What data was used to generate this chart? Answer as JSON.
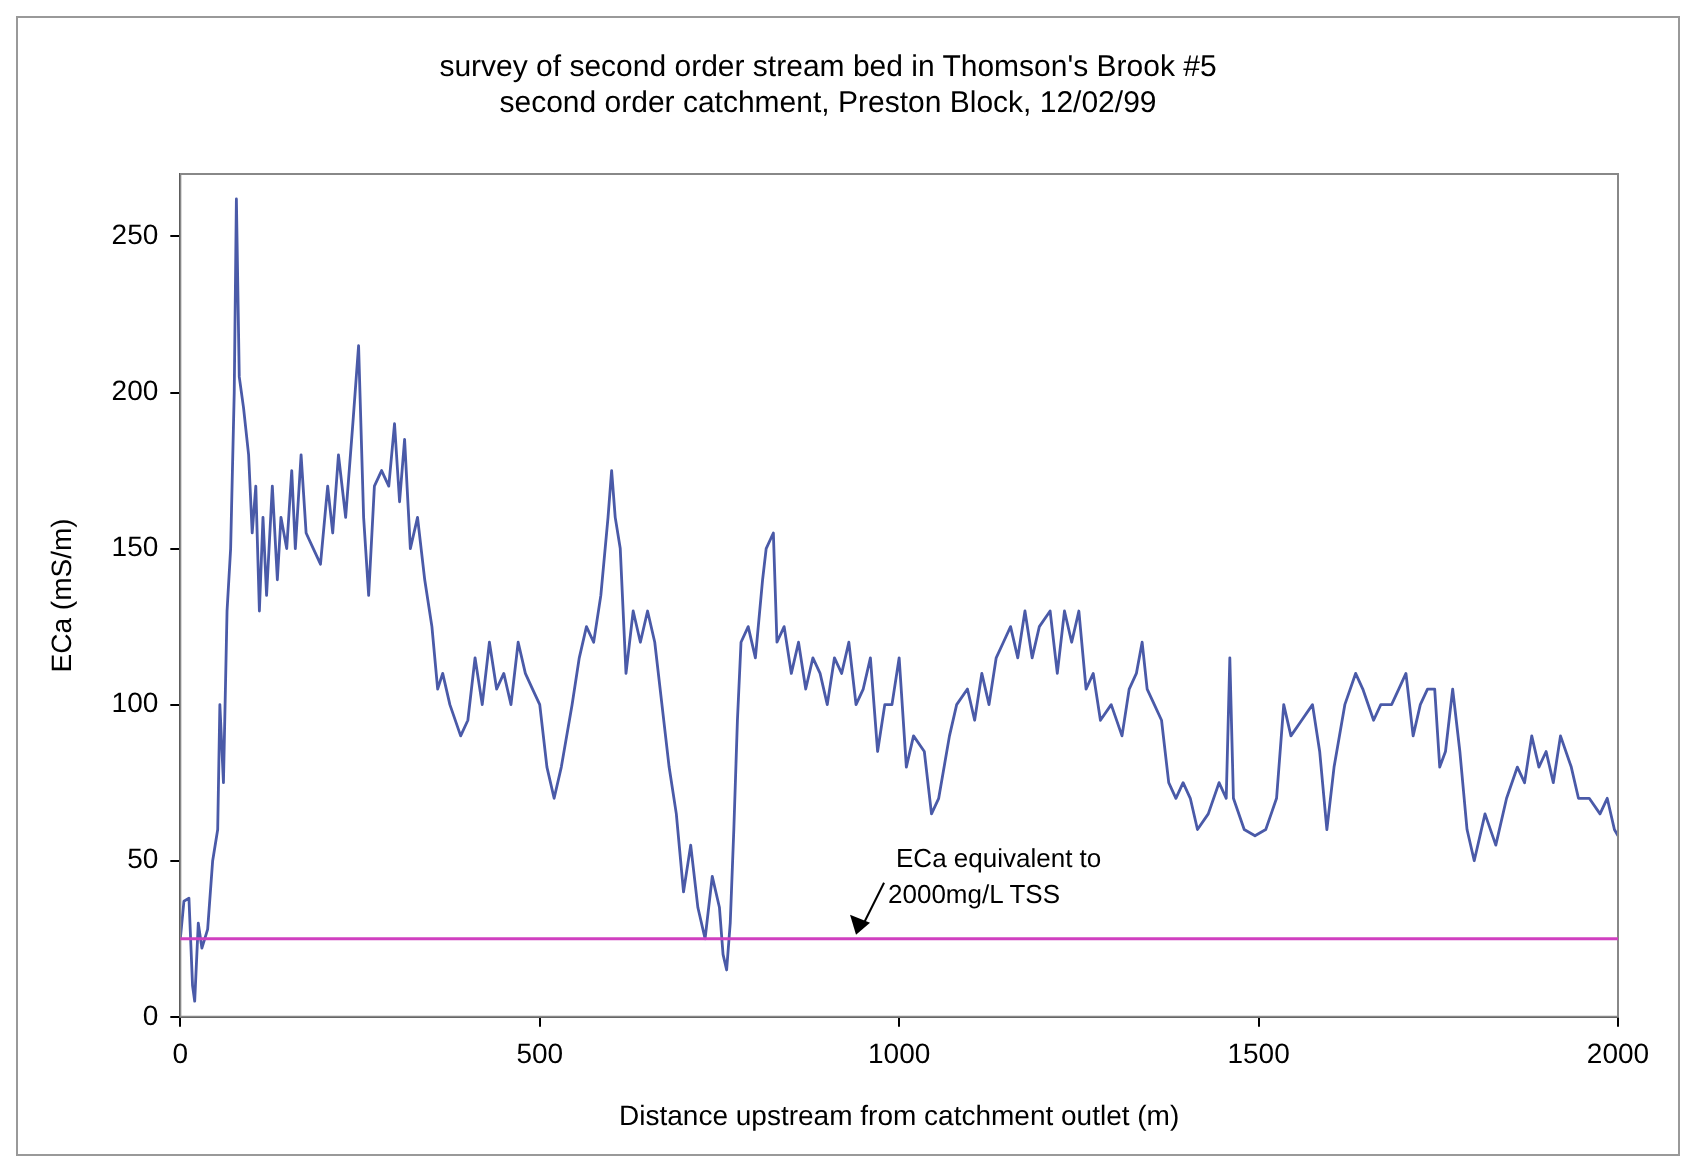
{
  "chart_data": {
    "type": "line",
    "title": "survey of second order stream bed in Thomson's Brook #5\nsecond order catchment, Preston Block, 12/02/99",
    "xlabel": "Distance upstream from catchment outlet (m)",
    "ylabel": "ECa (mS/m)",
    "x": [
      0,
      5,
      12,
      17,
      20,
      25,
      30,
      38,
      45,
      52,
      55,
      60,
      65,
      70,
      75,
      78,
      82,
      88,
      95,
      100,
      105,
      110,
      115,
      120,
      128,
      135,
      140,
      148,
      155,
      160,
      168,
      175,
      185,
      195,
      205,
      212,
      220,
      230,
      240,
      248,
      255,
      262,
      270,
      280,
      290,
      298,
      305,
      312,
      320,
      330,
      340,
      350,
      358,
      365,
      375,
      390,
      400,
      410,
      420,
      430,
      440,
      450,
      460,
      470,
      480,
      490,
      500,
      510,
      520,
      530,
      545,
      555,
      565,
      575,
      585,
      595,
      600,
      605,
      612,
      620,
      630,
      640,
      650,
      660,
      670,
      680,
      690,
      700,
      710,
      720,
      730,
      740,
      750,
      755,
      760,
      765,
      770,
      775,
      780,
      790,
      800,
      810,
      815,
      825,
      830,
      840,
      850,
      860,
      870,
      880,
      890,
      900,
      910,
      920,
      930,
      940,
      950,
      960,
      970,
      980,
      990,
      1000,
      1010,
      1020,
      1035,
      1045,
      1055,
      1070,
      1080,
      1095,
      1105,
      1115,
      1125,
      1135,
      1145,
      1155,
      1165,
      1175,
      1185,
      1195,
      1210,
      1220,
      1230,
      1240,
      1250,
      1260,
      1270,
      1280,
      1295,
      1310,
      1320,
      1330,
      1338,
      1345,
      1355,
      1365,
      1375,
      1385,
      1395,
      1405,
      1415,
      1430,
      1445,
      1455,
      1460,
      1465,
      1480,
      1495,
      1510,
      1525,
      1535,
      1545,
      1560,
      1575,
      1585,
      1595,
      1605,
      1620,
      1635,
      1645,
      1660,
      1670,
      1685,
      1695,
      1705,
      1715,
      1725,
      1735,
      1745,
      1752,
      1760,
      1770,
      1780,
      1790,
      1800,
      1815,
      1830,
      1845,
      1860,
      1870,
      1880,
      1890,
      1900,
      1910,
      1920,
      1935,
      1945,
      1960,
      1975,
      1985,
      1995,
      2000
    ],
    "series": [
      {
        "color": "#4a5aa8",
        "values": [
          25,
          37,
          38,
          10,
          5,
          30,
          22,
          28,
          50,
          60,
          100,
          75,
          130,
          150,
          200,
          262,
          205,
          195,
          180,
          155,
          170,
          130,
          160,
          135,
          170,
          140,
          160,
          150,
          175,
          150,
          180,
          155,
          150,
          145,
          170,
          155,
          180,
          160,
          190,
          215,
          160,
          135,
          170,
          175,
          170,
          190,
          165,
          185,
          150,
          160,
          140,
          125,
          105,
          110,
          100,
          90,
          95,
          115,
          100,
          120,
          105,
          110,
          100,
          120,
          110,
          105,
          100,
          80,
          70,
          80,
          100,
          115,
          125,
          120,
          135,
          160,
          175,
          160,
          150,
          110,
          130,
          120,
          130,
          120,
          100,
          80,
          65,
          40,
          55,
          35,
          25,
          45,
          35,
          20,
          15,
          30,
          60,
          95,
          120,
          125,
          115,
          140,
          150,
          155,
          120,
          125,
          110,
          120,
          105,
          115,
          110,
          100,
          115,
          110,
          120,
          100,
          105,
          115,
          85,
          100,
          100,
          115,
          80,
          90,
          85,
          65,
          70,
          90,
          100,
          105,
          95,
          110,
          100,
          115,
          120,
          125,
          115,
          130,
          115,
          125,
          130,
          110,
          130,
          120,
          130,
          105,
          110,
          95,
          100,
          90,
          105,
          110,
          120,
          105,
          100,
          95,
          75,
          70,
          75,
          70,
          60,
          65,
          75,
          70,
          115,
          70,
          60,
          58,
          60,
          70,
          100,
          90,
          95,
          100,
          85,
          60,
          80,
          100,
          110,
          105,
          95,
          100,
          100,
          105,
          110,
          90,
          100,
          105,
          105,
          80,
          85,
          105,
          85,
          60,
          50,
          65,
          55,
          70,
          80,
          75,
          90,
          80,
          85,
          75,
          90,
          80,
          70,
          70,
          65,
          70,
          60,
          58
        ]
      }
    ],
    "xlim": [
      0,
      2000
    ],
    "xticks": [
      0,
      500,
      1000,
      1500,
      2000
    ],
    "ylim": [
      0,
      270
    ],
    "yticks": [
      0,
      50,
      100,
      150,
      200,
      250
    ],
    "ref_lines": [
      {
        "axis": "y",
        "value": 25,
        "color": "#d040c0"
      }
    ],
    "annotations": [
      {
        "text": "ECa equivalent to 2000mg/L TSS",
        "x": 940,
        "y": 25
      }
    ],
    "marker": "none",
    "line_style": "solid",
    "legend": false
  }
}
